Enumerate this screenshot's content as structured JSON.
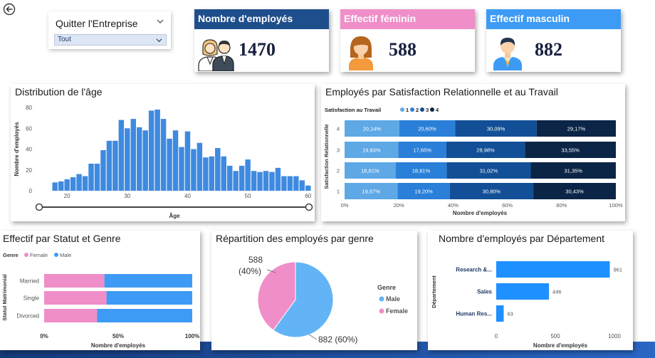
{
  "slicer": {
    "title": "Quitter l'Entreprise",
    "value": "Tout"
  },
  "kpis": {
    "employees": {
      "label": "Nombre d'employés",
      "value": "1470",
      "color": "#1f4e8c"
    },
    "female": {
      "label": "Effectif féminin",
      "value": "588",
      "color": "#ef8ec8"
    },
    "male": {
      "label": "Effectif masculin",
      "value": "882",
      "color": "#3e9bf5"
    }
  },
  "icons": [
    "back-arrow-icon",
    "chevron-down-icon",
    "employees-group-icon",
    "female-avatar-icon",
    "male-avatar-icon"
  ],
  "age_panel": {
    "title": "Distribution de l'âge"
  },
  "satisfaction_panel": {
    "title": "Employés par Satisfaction Relationnelle et au Travail"
  },
  "status_panel": {
    "title": "Effectif par Statut et Genre"
  },
  "gender_panel": {
    "title": "Répartition des employés par genre"
  },
  "dept_panel": {
    "title": "Nombre d'employés par Département"
  },
  "chart_data": [
    {
      "type": "bar",
      "title": "Distribution de l'âge",
      "xlabel": "Âge",
      "ylabel": "Nombre d'employés",
      "ylim": [
        0,
        80
      ],
      "yticks": [
        0,
        20,
        40,
        60,
        80
      ],
      "xticks": [
        20,
        30,
        40,
        50,
        60
      ],
      "x": [
        18,
        19,
        20,
        21,
        22,
        23,
        24,
        25,
        26,
        27,
        28,
        29,
        30,
        31,
        32,
        33,
        34,
        35,
        36,
        37,
        38,
        39,
        40,
        41,
        42,
        43,
        44,
        45,
        46,
        47,
        48,
        49,
        50,
        51,
        52,
        53,
        54,
        55,
        56,
        57,
        58,
        59,
        60
      ],
      "values": [
        8,
        9,
        11,
        13,
        16,
        14,
        26,
        26,
        39,
        48,
        48,
        68,
        60,
        69,
        61,
        58,
        77,
        78,
        69,
        50,
        58,
        42,
        57,
        40,
        46,
        32,
        33,
        41,
        33,
        24,
        19,
        24,
        30,
        19,
        18,
        19,
        18,
        22,
        14,
        14,
        14,
        10,
        5
      ],
      "color": "#3e8ae0",
      "slider": {
        "min": 18,
        "max": 60
      },
      "grid": false
    },
    {
      "type": "bar",
      "title": "Employés par Satisfaction Relationnelle et au Travail",
      "stacked": "100%",
      "orientation": "horizontal",
      "legend_title": "Satisfaction au Travail",
      "legend_position": "top-left",
      "xlabel": "Nombre d'employés",
      "ylabel": "Satisfaction Relationnelle",
      "xticks": [
        "0%",
        "20%",
        "40%",
        "60%",
        "80%",
        "100%"
      ],
      "categories": [
        "4",
        "3",
        "2",
        "1"
      ],
      "series": [
        {
          "name": "1",
          "color": "#5ea8e6",
          "values": [
            20.14,
            19.83,
            18.81,
            19.57
          ],
          "labels": [
            "20,14%",
            "19,83%",
            "18,81%",
            "19,57%"
          ]
        },
        {
          "name": "2",
          "color": "#2a7fd8",
          "values": [
            20.6,
            17.65,
            18.81,
            19.2
          ],
          "labels": [
            "20,60%",
            "17,65%",
            "18,81%",
            "19,20%"
          ]
        },
        {
          "name": "3",
          "color": "#124f96",
          "values": [
            30.09,
            28.98,
            31.02,
            30.8
          ],
          "labels": [
            "30,09%",
            "28,98%",
            "31,02%",
            "30,80%"
          ]
        },
        {
          "name": "4",
          "color": "#0b2547",
          "values": [
            29.17,
            33.55,
            31.35,
            30.43
          ],
          "labels": [
            "29,17%",
            "33,55%",
            "31,35%",
            "30,43%"
          ]
        }
      ]
    },
    {
      "type": "bar",
      "title": "Effectif par Statut et Genre",
      "stacked": "100%",
      "orientation": "horizontal",
      "legend_title": "Genre",
      "legend_position": "top-left",
      "xlabel": "Nombre d'employés",
      "ylabel": "Statut Matrimonial",
      "xticks": [
        "0%",
        "50%",
        "100%"
      ],
      "categories": [
        "Married",
        "Single",
        "Divorced"
      ],
      "series": [
        {
          "name": "Female",
          "color": "#ef8ec8",
          "values": [
            40.7,
            42.1,
            35.8
          ]
        },
        {
          "name": "Male",
          "color": "#3e9bf5",
          "values": [
            59.3,
            57.9,
            64.2
          ]
        }
      ]
    },
    {
      "type": "pie",
      "title": "Répartition des employés par genre",
      "legend_title": "Genre",
      "legend_position": "right",
      "slices": [
        {
          "name": "Male",
          "value": 882,
          "label": "882 (60%)",
          "color": "#62b4f6"
        },
        {
          "name": "Female",
          "value": 588,
          "label": "588",
          "label_pct": "(40%)",
          "color": "#ef8ec8"
        }
      ]
    },
    {
      "type": "bar",
      "title": "Nombre d'employés par Département",
      "orientation": "horizontal",
      "xlabel": "Nombre d'employés",
      "ylabel": "Département",
      "xlim": [
        0,
        1000
      ],
      "xticks": [
        0,
        500,
        1000
      ],
      "categories": [
        "Research &...",
        "Sales",
        "Human Res..."
      ],
      "values": [
        961,
        446,
        63
      ],
      "color": "#1e90ff"
    }
  ]
}
